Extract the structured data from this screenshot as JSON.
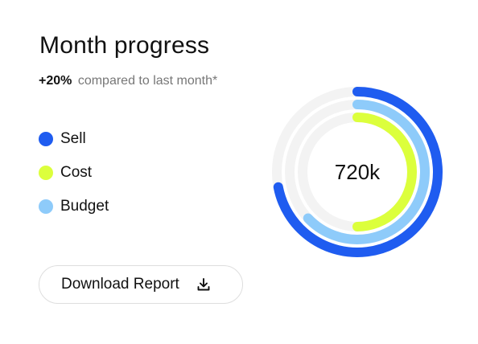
{
  "card": {
    "title": "Month progress",
    "delta": "+20%",
    "compare_text": "compared to last month*",
    "download_label": "Download Report"
  },
  "colors": {
    "sell": "#1f5cf0",
    "cost": "#dcff3c",
    "budget": "#8ecbfa",
    "track": "#f3f3f3"
  },
  "chart_data": {
    "type": "radial-progress",
    "center_label": "720k",
    "series": [
      {
        "name": "Sell",
        "value": 0.72,
        "color": "#1f5cf0"
      },
      {
        "name": "Budget",
        "value": 0.63,
        "color": "#8ecbfa"
      },
      {
        "name": "Cost",
        "value": 0.5,
        "color": "#dcff3c"
      }
    ],
    "legend": [
      "Sell",
      "Cost",
      "Budget"
    ],
    "legend_colors": [
      "#1f5cf0",
      "#dcff3c",
      "#8ecbfa"
    ]
  }
}
